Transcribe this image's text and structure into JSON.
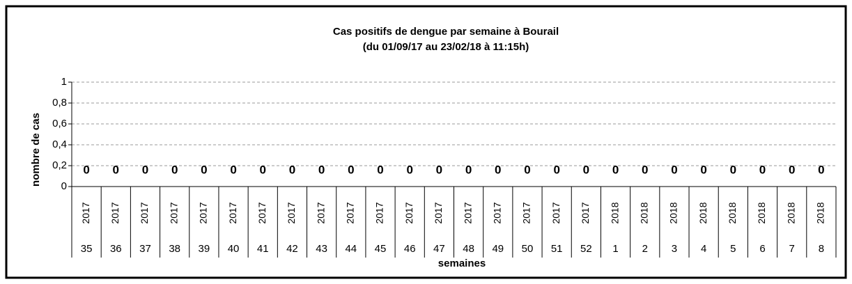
{
  "chart_data": {
    "type": "bar",
    "title": "Cas positifs de dengue par semaine à Bourail",
    "subtitle": "(du 01/09/17 au 23/02/18 à 11:15h)",
    "y_label": "nombre de cas",
    "x_label": "semaines",
    "categories": [
      "35",
      "36",
      "37",
      "38",
      "39",
      "40",
      "41",
      "42",
      "43",
      "44",
      "45",
      "46",
      "47",
      "48",
      "49",
      "50",
      "51",
      "52",
      "1",
      "2",
      "3",
      "4",
      "5",
      "6",
      "7",
      "8"
    ],
    "years": [
      "2017",
      "2017",
      "2017",
      "2017",
      "2017",
      "2017",
      "2017",
      "2017",
      "2017",
      "2017",
      "2017",
      "2017",
      "2017",
      "2017",
      "2017",
      "2017",
      "2017",
      "2017",
      "2018",
      "2018",
      "2018",
      "2018",
      "2018",
      "2018",
      "2018",
      "2018"
    ],
    "values": [
      0,
      0,
      0,
      0,
      0,
      0,
      0,
      0,
      0,
      0,
      0,
      0,
      0,
      0,
      0,
      0,
      0,
      0,
      0,
      0,
      0,
      0,
      0,
      0,
      0,
      0
    ],
    "color": "#4472c4",
    "ylim": [
      0,
      1
    ],
    "yticks": [
      0,
      {
        "value": 0.2,
        "label": "0,2"
      },
      {
        "value": 0.4,
        "label": "0,4"
      },
      {
        "value": 0.6,
        "label": "0,6"
      },
      {
        "value": 0.8,
        "label": "0,8"
      },
      1
    ],
    "grid": true
  }
}
